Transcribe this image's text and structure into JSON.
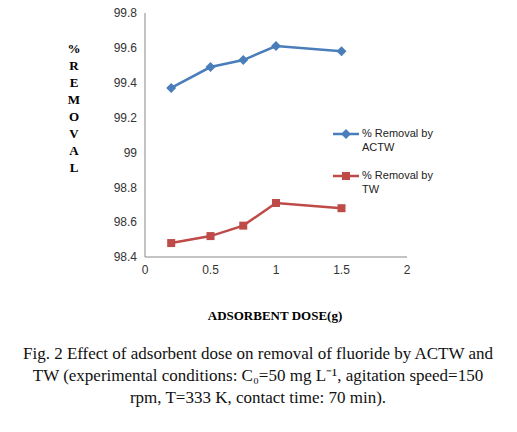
{
  "chart_data": {
    "type": "line",
    "title": "Fig. 2 Effect of adsorbent dose on removal of fluoride by ACTW and TW (experimental conditions: C₀=50 mg L⁻¹, agitation speed=150 rpm, T=333 K, contact time: 70 min).",
    "x_label": "ADSORBENT DOSE(g)",
    "y_label": "% REMOVAL",
    "x": [
      0.2,
      0.5,
      0.75,
      1,
      1.5
    ],
    "series": [
      {
        "name": "% Removal by ACTW",
        "color": "#4a7ebb",
        "marker": "diamond",
        "values": [
          99.37,
          99.49,
          99.53,
          99.61,
          99.58
        ]
      },
      {
        "name": "% Removal by TW",
        "color": "#be4b48",
        "marker": "square",
        "values": [
          98.48,
          98.52,
          98.58,
          98.71,
          98.68
        ]
      }
    ],
    "xlim": [
      0,
      2
    ],
    "xticks": [
      0,
      0.5,
      1,
      1.5,
      2
    ],
    "ylim": [
      98.4,
      99.8
    ],
    "yticks": [
      98.4,
      98.6,
      98.8,
      99,
      99.2,
      99.4,
      99.6,
      99.8
    ],
    "grid": false,
    "legend": "right"
  }
}
